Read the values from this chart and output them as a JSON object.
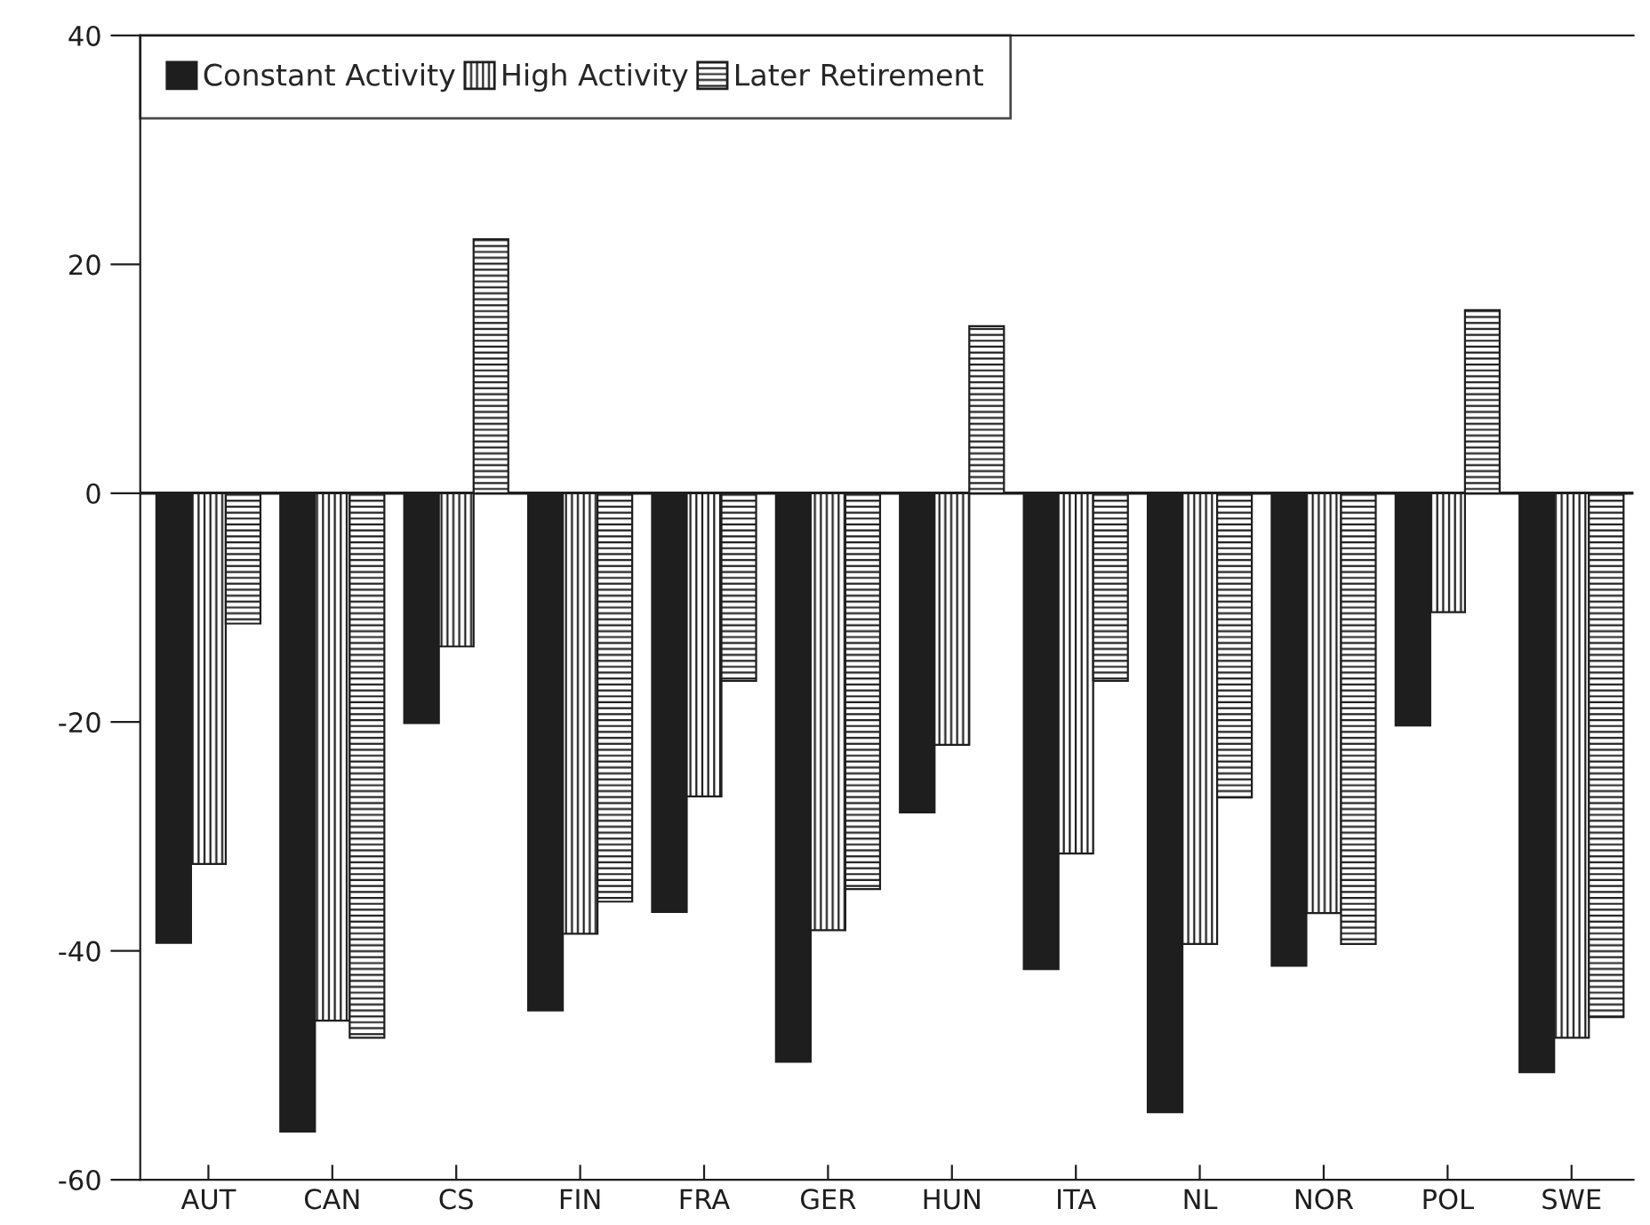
{
  "chart_data": {
    "type": "bar",
    "categories": [
      "AUT",
      "CAN",
      "CS",
      "FIN",
      "FRA",
      "GER",
      "HUN",
      "ITA",
      "NL",
      "NOR",
      "POL",
      "SWE"
    ],
    "series": [
      {
        "name": "Constant Activity",
        "color": "#1e1e1e",
        "values": [
          -39.3,
          -55.8,
          -20.1,
          -45.2,
          -36.6,
          -49.7,
          -27.9,
          -41.6,
          -54.1,
          -41.3,
          -20.3,
          -50.6
        ]
      },
      {
        "name": "High Activity",
        "color": "#1e1e1e",
        "values": [
          -32.4,
          -46.1,
          -13.4,
          -38.5,
          -26.5,
          -38.2,
          -22.0,
          -31.5,
          -39.4,
          -36.7,
          -10.4,
          -47.6
        ]
      },
      {
        "name": "Later Retirement",
        "color": "#1e1e1e",
        "values": [
          -11.4,
          -47.6,
          22.2,
          -35.7,
          -16.4,
          -34.6,
          14.6,
          -16.4,
          -26.6,
          -39.4,
          16.0,
          -45.8
        ]
      }
    ],
    "ylim": [
      -60,
      40
    ],
    "yticks": [
      -60,
      -40,
      -20,
      0,
      20,
      40
    ],
    "ref_lines": [
      {
        "axis": "y",
        "value": 0,
        "color": "#1e1e1e"
      }
    ],
    "legend": "top left",
    "grid": false
  }
}
